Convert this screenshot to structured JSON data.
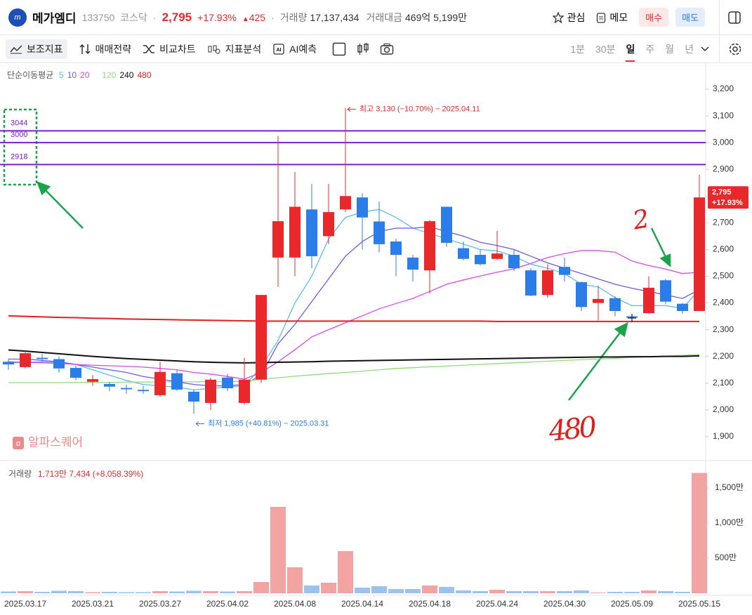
{
  "header": {
    "name": "메가엠디",
    "code": "133750",
    "market": "코스닥",
    "price": "2,795",
    "change_pct": "+17.93%",
    "change": "425",
    "volume_label": "거래량",
    "volume": "17,137,434",
    "amount_label": "거래대금",
    "amount": "469억 5,199만",
    "buttons": [
      "관심",
      "메모",
      "매수",
      "매도"
    ]
  },
  "toolbar": {
    "items": [
      "보조지표",
      "매매전략",
      "비교차트",
      "지표분석",
      "AI예측"
    ],
    "periods": [
      "1분",
      "30분",
      "일",
      "주",
      "월",
      "년"
    ]
  },
  "chart_data": {
    "type": "candlestick",
    "legend_title": "단순이동평균",
    "categories": [
      null,
      "2025.03.17",
      null,
      null,
      null,
      "2025.03.21",
      null,
      null,
      null,
      "2025.03.27",
      null,
      null,
      null,
      "2025.04.02",
      null,
      null,
      null,
      "2025.04.08",
      null,
      null,
      null,
      "2025.04.14",
      null,
      null,
      null,
      "2025.04.18",
      null,
      null,
      null,
      "2025.04.24",
      null,
      null,
      null,
      "2025.04.30",
      null,
      null,
      null,
      "2025.05.09",
      null,
      null,
      null,
      "2025.05.15"
    ],
    "open": [
      2180,
      2160,
      2195,
      2190,
      2157,
      2105,
      2097,
      2082,
      2075,
      2055,
      2137,
      2068,
      2026,
      2121,
      2026,
      2113,
      2570,
      2570,
      2750,
      2650,
      2750,
      2795,
      2705,
      2630,
      2570,
      2522,
      2760,
      2605,
      2580,
      2565,
      2580,
      2522,
      2430,
      2535,
      2478,
      2400,
      2418,
      2350,
      2362,
      2485,
      2397,
      2370
    ],
    "high": [
      2190,
      2220,
      2210,
      2200,
      2165,
      2130,
      2105,
      2095,
      2090,
      2180,
      2150,
      2075,
      2120,
      2135,
      2195,
      2430,
      3025,
      2890,
      2845,
      2845,
      3130,
      2810,
      2780,
      2640,
      2580,
      2710,
      2760,
      2630,
      2600,
      2670,
      2600,
      2530,
      2545,
      2570,
      2480,
      2465,
      2425,
      2355,
      2500,
      2490,
      2400,
      2880
    ],
    "low": [
      2150,
      2155,
      2180,
      2140,
      2110,
      2090,
      2070,
      2060,
      2060,
      2050,
      2070,
      1985,
      2000,
      2070,
      2020,
      2100,
      2460,
      2500,
      2530,
      2620,
      2740,
      2600,
      2590,
      2500,
      2480,
      2435,
      2610,
      2560,
      2540,
      2560,
      2520,
      2425,
      2420,
      2480,
      2370,
      2335,
      2350,
      2335,
      2360,
      2395,
      2360,
      2370
    ],
    "close": [
      2170,
      2212,
      2190,
      2155,
      2120,
      2115,
      2087,
      2077,
      2070,
      2142,
      2076,
      2031,
      2113,
      2081,
      2113,
      2430,
      2706,
      2760,
      2575,
      2740,
      2800,
      2720,
      2620,
      2580,
      2525,
      2706,
      2625,
      2565,
      2545,
      2585,
      2530,
      2428,
      2522,
      2505,
      2385,
      2415,
      2370,
      2345,
      2457,
      2405,
      2370,
      2795
    ],
    "up_color": "#e8282b",
    "down_color": "#2b7de9",
    "series": [
      {
        "name": "5",
        "color": "#5bbcf0",
        "values": [
          2175,
          2178,
          2180,
          2178,
          2170,
          2150,
          2130,
          2110,
          2095,
          2090,
          2085,
          2075,
          2080,
          2085,
          2090,
          2160,
          2260,
          2400,
          2500,
          2640,
          2720,
          2740,
          2750,
          2720,
          2680,
          2660,
          2640,
          2620,
          2600,
          2595,
          2575,
          2545,
          2530,
          2510,
          2470,
          2460,
          2420,
          2390,
          2390,
          2390,
          2380,
          2450
        ]
      },
      {
        "name": "10",
        "color": "#6f5be0",
        "values": [
          2190,
          2190,
          2185,
          2180,
          2170,
          2160,
          2150,
          2140,
          2125,
          2115,
          2105,
          2095,
          2090,
          2090,
          2095,
          2130,
          2247,
          2320,
          2405,
          2490,
          2575,
          2630,
          2667,
          2680,
          2680,
          2685,
          2667,
          2650,
          2627,
          2615,
          2600,
          2575,
          2550,
          2530,
          2510,
          2490,
          2470,
          2455,
          2443,
          2430,
          2417,
          2450
        ]
      },
      {
        "name": "20",
        "color": "#d64be8",
        "values": [
          2180,
          2178,
          2176,
          2174,
          2170,
          2167,
          2165,
          2163,
          2160,
          2155,
          2150,
          2140,
          2134,
          2125,
          2115,
          2140,
          2180,
          2225,
          2273,
          2300,
          2326,
          2352,
          2378,
          2398,
          2417,
          2443,
          2470,
          2486,
          2501,
          2515,
          2528,
          2548,
          2570,
          2585,
          2596,
          2596,
          2590,
          2557,
          2540,
          2527,
          2510,
          2515
        ]
      },
      {
        "name": "120",
        "color": "#8fdc7a",
        "values": [
          2102,
          2102,
          2102,
          2102,
          2103,
          2103,
          2103,
          2104,
          2104,
          2105,
          2105,
          2105,
          2106,
          2106,
          2107,
          2115,
          2120,
          2126,
          2131,
          2136,
          2140,
          2145,
          2150,
          2155,
          2158,
          2161,
          2164,
          2167,
          2170,
          2173,
          2176,
          2179,
          2182,
          2185,
          2188,
          2190,
          2193,
          2196,
          2199,
          2201,
          2204,
          2207
        ]
      },
      {
        "name": "240",
        "color": "#111111",
        "values": [
          2224,
          2220,
          2215,
          2210,
          2205,
          2200,
          2196,
          2192,
          2189,
          2186,
          2183,
          2180,
          2178,
          2177,
          2176,
          2177,
          2178,
          2179,
          2180,
          2182,
          2183,
          2184,
          2185,
          2186,
          2187,
          2188,
          2189,
          2190,
          2191,
          2192,
          2193,
          2194,
          2195,
          2196,
          2197,
          2198,
          2198,
          2199,
          2199,
          2200,
          2200,
          2202
        ]
      },
      {
        "name": "480",
        "color": "#e0201c",
        "values": [
          2352,
          2350,
          2348,
          2346,
          2345,
          2343,
          2342,
          2340,
          2339,
          2338,
          2337,
          2336,
          2335,
          2334,
          2333,
          2332,
          2332,
          2332,
          2332,
          2332,
          2332,
          2332,
          2332,
          2332,
          2332,
          2332,
          2332,
          2332,
          2332,
          2331,
          2331,
          2331,
          2331,
          2331,
          2331,
          2331,
          2331,
          2331,
          2331,
          2331,
          2331,
          2331
        ]
      }
    ],
    "hlines": [
      3044,
      3000,
      2918
    ],
    "hline_color": "#7b1fd0",
    "ylim": [
      1813,
      3292
    ],
    "yticks": [
      {
        "value": 1900,
        "label": "1,900"
      },
      {
        "value": 2000,
        "label": "2,000"
      },
      {
        "value": 2100,
        "label": "2,100"
      },
      {
        "value": 2200,
        "label": "2,200"
      },
      {
        "value": 2300,
        "label": "2,300"
      },
      {
        "value": 2400,
        "label": "2,400"
      },
      {
        "value": 2500,
        "label": "2,500"
      },
      {
        "value": 2600,
        "label": "2,600"
      },
      {
        "value": 2700,
        "label": "2,700"
      },
      {
        "value": 2800,
        "label": "2,800"
      },
      {
        "value": 2900,
        "label": "2,900"
      },
      {
        "value": 3000,
        "label": "3,000"
      },
      {
        "value": 3100,
        "label": "3,100"
      },
      {
        "value": 3200,
        "label": "3,200"
      }
    ],
    "grid": false,
    "annotations": [
      "최고 3,130 (−10.70%) − 2025.04.11",
      "최저 1,985 (+40.81%) − 2025.03.31"
    ],
    "last_price_label": "2,795",
    "last_change_label": "+17.93%",
    "watermark": "알파스퀘어",
    "handwritten": [
      "2",
      "480"
    ],
    "volume_title": "거래량",
    "volume_value_label": "1,713만 7,434 (+8,058.39%)",
    "volume": [
      250000,
      300000,
      200000,
      350000,
      300000,
      150000,
      200000,
      150000,
      150000,
      300000,
      250000,
      350000,
      300000,
      250000,
      300000,
      1600000,
      12300000,
      3700000,
      1100000,
      1500000,
      6000000,
      800000,
      1000000,
      600000,
      600000,
      1100000,
      900000,
      400000,
      300000,
      500000,
      300000,
      300000,
      300000,
      300000,
      400000,
      100000,
      200000,
      200000,
      400000,
      300000,
      200000,
      17137434
    ],
    "volume_up_color": "#f4a3a3",
    "volume_down_color": "#9cc2ef",
    "volume_ylim": [
      0,
      18000000
    ],
    "volume_yticks": [
      {
        "value": 5000000,
        "label": "500만"
      },
      {
        "value": 10000000,
        "label": "1,000만"
      },
      {
        "value": 15000000,
        "label": "1,500만"
      }
    ]
  }
}
